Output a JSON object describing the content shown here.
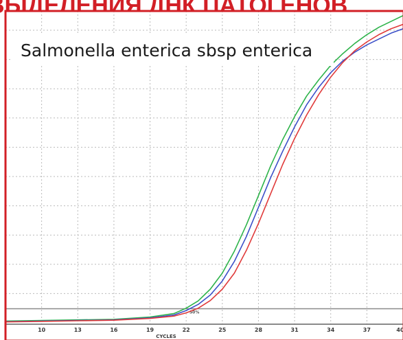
{
  "header": {
    "banner_text": "ВЫДЕЛЕНИЯ ДНК ПАТОГЕНОВ",
    "accent_color": "#d21f26"
  },
  "chart_data": {
    "type": "line",
    "title": "Salmonella enterica sbsp enterica",
    "xlabel": "CYCLES",
    "ylabel": "",
    "xlim": [
      7,
      40
    ],
    "ylim": [
      0,
      100
    ],
    "x_ticks": [
      10,
      13,
      16,
      19,
      22,
      25,
      28,
      31,
      34,
      37,
      40
    ],
    "threshold": {
      "label": "50%",
      "value": 4.8,
      "color": "#8a8a8a"
    },
    "grid": true,
    "series": [
      {
        "color": "#2db34a",
        "x": [
          7,
          10,
          13,
          16,
          19,
          21,
          22,
          23,
          24,
          25,
          26,
          27,
          28,
          29,
          30,
          31,
          32,
          33,
          34,
          35,
          36,
          37,
          38,
          39,
          40
        ],
        "y": [
          0.6,
          0.8,
          1.0,
          1.2,
          2.0,
          3.2,
          5.0,
          7.5,
          11.5,
          17.0,
          24.5,
          33.5,
          43.5,
          53.5,
          62.5,
          70.5,
          77.5,
          83.0,
          88.0,
          92.0,
          95.5,
          98.5,
          101,
          103,
          105
        ]
      },
      {
        "color": "#3c50c8",
        "x": [
          7,
          10,
          13,
          16,
          19,
          21,
          22,
          23,
          24,
          25,
          26,
          27,
          28,
          29,
          30,
          31,
          32,
          33,
          34,
          35,
          36,
          37,
          38,
          39,
          40
        ],
        "y": [
          0.4,
          0.6,
          0.8,
          1.0,
          1.7,
          2.7,
          4.2,
          6.3,
          9.5,
          14.3,
          21.0,
          29.5,
          39.5,
          49.5,
          58.5,
          67.0,
          74.5,
          80.5,
          85.5,
          89.5,
          92.5,
          95.0,
          97.0,
          99.0,
          100.5
        ]
      },
      {
        "color": "#e03a3a",
        "x": [
          7,
          10,
          13,
          16,
          19,
          21,
          22,
          23,
          24,
          25,
          26,
          27,
          28,
          29,
          30,
          31,
          32,
          33,
          34,
          35,
          36,
          37,
          38,
          39,
          40
        ],
        "y": [
          0.3,
          0.5,
          0.7,
          0.9,
          1.5,
          2.3,
          3.4,
          5.0,
          7.6,
          11.5,
          17.0,
          24.8,
          34.0,
          44.0,
          54.0,
          63.0,
          71.0,
          78.0,
          84.0,
          89.0,
          93.0,
          96.0,
          98.5,
          100.5,
          102
        ]
      }
    ]
  }
}
